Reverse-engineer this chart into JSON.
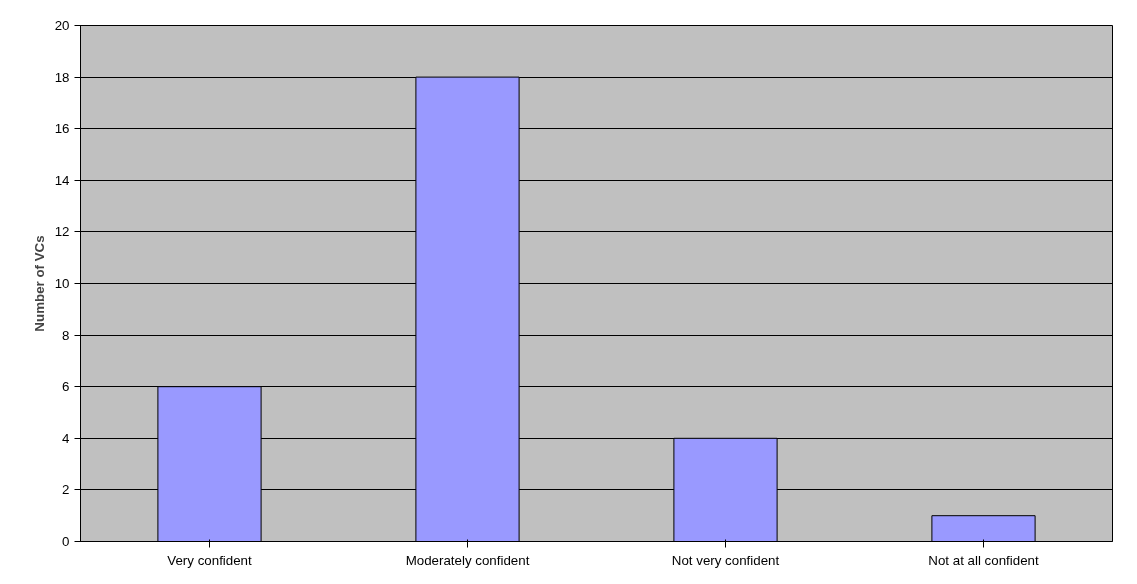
{
  "chart_data": {
    "type": "bar",
    "ylabel": "Number of VCs",
    "categories": [
      "Very confident",
      "Moderately confident",
      "Not very confident",
      "Not at all confident"
    ],
    "values": [
      6,
      18,
      4,
      1
    ],
    "color": "#9999ff",
    "ylim": [
      0,
      20
    ],
    "yticks": [
      0,
      2,
      4,
      6,
      8,
      10,
      12,
      14,
      16,
      18,
      20
    ],
    "grid": "y"
  }
}
